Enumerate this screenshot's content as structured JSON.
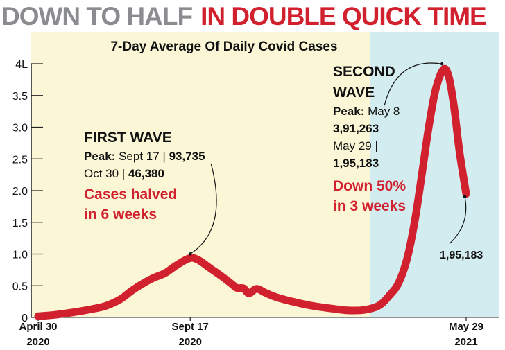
{
  "headline": {
    "part1": "DOWN TO HALF",
    "part2": "IN DOUBLE QUICK TIME",
    "part1_color": "#8a8c8f",
    "part2_color": "#d1202e"
  },
  "colors": {
    "first_wave_bg": "#fbf6d5",
    "second_wave_bg": "#d3ecef",
    "line": "#d1202e"
  },
  "chart_data": {
    "type": "line",
    "title": "7-Day Average Of Daily Covid Cases",
    "xlabel": "",
    "ylabel": "",
    "ylim": [
      0,
      4
    ],
    "y_ticks": [
      "0",
      "0.5",
      "1.0",
      "1.5",
      "2.0",
      "2.5",
      "3.0",
      "3.5",
      "4L"
    ],
    "x_ticks": [
      {
        "date": "2020-04-30",
        "line1": "April 30",
        "line2": "2020"
      },
      {
        "date": "2020-09-17",
        "line1": "Sept 17",
        "line2": "2020"
      },
      {
        "date": "2021-05-29",
        "line1": "May 29",
        "line2": "2021"
      }
    ],
    "grid": false,
    "series": [
      {
        "values": [
          {
            "date": "2020-04-30",
            "y": 0.02
          },
          {
            "date": "2020-05-15",
            "y": 0.04
          },
          {
            "date": "2020-06-01",
            "y": 0.08
          },
          {
            "date": "2020-06-15",
            "y": 0.12
          },
          {
            "date": "2020-07-01",
            "y": 0.18
          },
          {
            "date": "2020-07-15",
            "y": 0.29
          },
          {
            "date": "2020-07-25",
            "y": 0.42
          },
          {
            "date": "2020-08-05",
            "y": 0.54
          },
          {
            "date": "2020-08-15",
            "y": 0.63
          },
          {
            "date": "2020-08-25",
            "y": 0.7
          },
          {
            "date": "2020-09-05",
            "y": 0.83
          },
          {
            "date": "2020-09-17",
            "y": 0.937
          },
          {
            "date": "2020-09-25",
            "y": 0.9
          },
          {
            "date": "2020-10-05",
            "y": 0.78
          },
          {
            "date": "2020-10-15",
            "y": 0.66
          },
          {
            "date": "2020-10-25",
            "y": 0.53
          },
          {
            "date": "2020-10-30",
            "y": 0.464
          },
          {
            "date": "2020-11-05",
            "y": 0.46
          },
          {
            "date": "2020-11-10",
            "y": 0.38
          },
          {
            "date": "2020-11-17",
            "y": 0.45
          },
          {
            "date": "2020-11-25",
            "y": 0.39
          },
          {
            "date": "2020-12-05",
            "y": 0.32
          },
          {
            "date": "2020-12-20",
            "y": 0.25
          },
          {
            "date": "2021-01-05",
            "y": 0.19
          },
          {
            "date": "2021-01-25",
            "y": 0.14
          },
          {
            "date": "2021-02-10",
            "y": 0.11
          },
          {
            "date": "2021-02-25",
            "y": 0.12
          },
          {
            "date": "2021-03-10",
            "y": 0.19
          },
          {
            "date": "2021-03-20",
            "y": 0.36
          },
          {
            "date": "2021-03-28",
            "y": 0.55
          },
          {
            "date": "2021-04-05",
            "y": 0.95
          },
          {
            "date": "2021-04-12",
            "y": 1.55
          },
          {
            "date": "2021-04-19",
            "y": 2.35
          },
          {
            "date": "2021-04-25",
            "y": 3.05
          },
          {
            "date": "2021-05-01",
            "y": 3.6
          },
          {
            "date": "2021-05-08",
            "y": 3.91
          },
          {
            "date": "2021-05-13",
            "y": 3.8
          },
          {
            "date": "2021-05-18",
            "y": 3.3
          },
          {
            "date": "2021-05-23",
            "y": 2.6
          },
          {
            "date": "2021-05-29",
            "y": 1.95
          }
        ]
      }
    ],
    "annotations": {
      "first_wave": {
        "title": "FIRST WAVE",
        "peak_label": "Peak:",
        "peak_text": " Sept 17 | ",
        "peak_value": "93,735",
        "line2_text": "Oct 30 | ",
        "line2_value": "46,380",
        "red_line1": "Cases halved",
        "red_line2": "in 6 weeks"
      },
      "second_wave": {
        "title_line1": "SECOND",
        "title_line2": "WAVE",
        "peak_label": "Peak:",
        "peak_text": " May 8",
        "peak_value": "3,91,263",
        "line3_text": "May 29 |",
        "line4_value": "1,95,183",
        "red_line1": "Down 50%",
        "red_line2": "in 3 weeks"
      },
      "end_value": "1,95,183"
    }
  }
}
